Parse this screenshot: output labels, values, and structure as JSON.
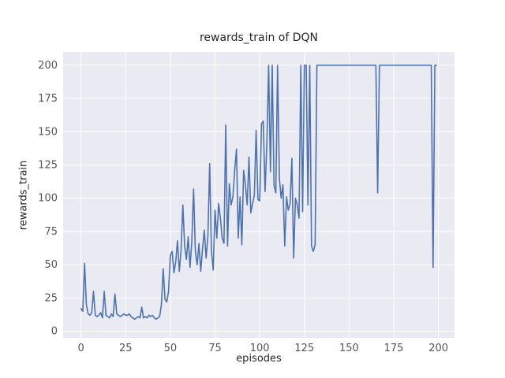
{
  "chart_data": {
    "type": "line",
    "title": "rewards_train of DQN",
    "xlabel": "episodes",
    "ylabel": "rewards_train",
    "x_ticks": [
      0,
      25,
      50,
      75,
      100,
      125,
      150,
      175,
      200
    ],
    "y_ticks": [
      0,
      25,
      50,
      75,
      100,
      125,
      150,
      175,
      200
    ],
    "xlim": [
      -10,
      209
    ],
    "ylim": [
      -5,
      210
    ],
    "grid": "on",
    "legend": "none",
    "style": {
      "plot_background": "#eaeaf2",
      "grid_color": "#ffffff",
      "line_color": "#4c72b0",
      "text_color": "#262626",
      "tick_color": "#555555"
    },
    "series": [
      {
        "name": "rewards_train",
        "x_is_index": true,
        "values": [
          17,
          15,
          51,
          20,
          13,
          12,
          14,
          30,
          12,
          11,
          12,
          14,
          10,
          30,
          12,
          11,
          10,
          13,
          11,
          28,
          13,
          12,
          11,
          12,
          13,
          12,
          12,
          13,
          11,
          10,
          9,
          10,
          11,
          10,
          18,
          10,
          11,
          10,
          12,
          11,
          12,
          10,
          9,
          10,
          11,
          20,
          47,
          24,
          22,
          30,
          57,
          60,
          44,
          52,
          68,
          45,
          61,
          95,
          64,
          54,
          71,
          48,
          67,
          107,
          60,
          50,
          66,
          45,
          62,
          76,
          55,
          71,
          126,
          60,
          46,
          91,
          70,
          96,
          85,
          70,
          66,
          155,
          64,
          111,
          95,
          101,
          121,
          137,
          70,
          101,
          65,
          121,
          110,
          95,
          131,
          89,
          96,
          102,
          151,
          99,
          98,
          156,
          158,
          105,
          141,
          200,
          120,
          200,
          110,
          104,
          200,
          115,
          100,
          110,
          64,
          101,
          91,
          96,
          130,
          55,
          100,
          95,
          85,
          200,
          90,
          200,
          200,
          95,
          200,
          64,
          60,
          65,
          200,
          200,
          200,
          200,
          200,
          200,
          200,
          200,
          200,
          200,
          200,
          200,
          200,
          200,
          200,
          200,
          200,
          200,
          200,
          200,
          200,
          200,
          200,
          200,
          200,
          200,
          200,
          200,
          200,
          200,
          200,
          200,
          200,
          200,
          104,
          200,
          200,
          200,
          200,
          200,
          200,
          200,
          200,
          200,
          200,
          200,
          200,
          200,
          200,
          200,
          200,
          200,
          200,
          200,
          200,
          200,
          200,
          200,
          200,
          200,
          200,
          200,
          200,
          200,
          200,
          48,
          200,
          200
        ]
      }
    ]
  }
}
